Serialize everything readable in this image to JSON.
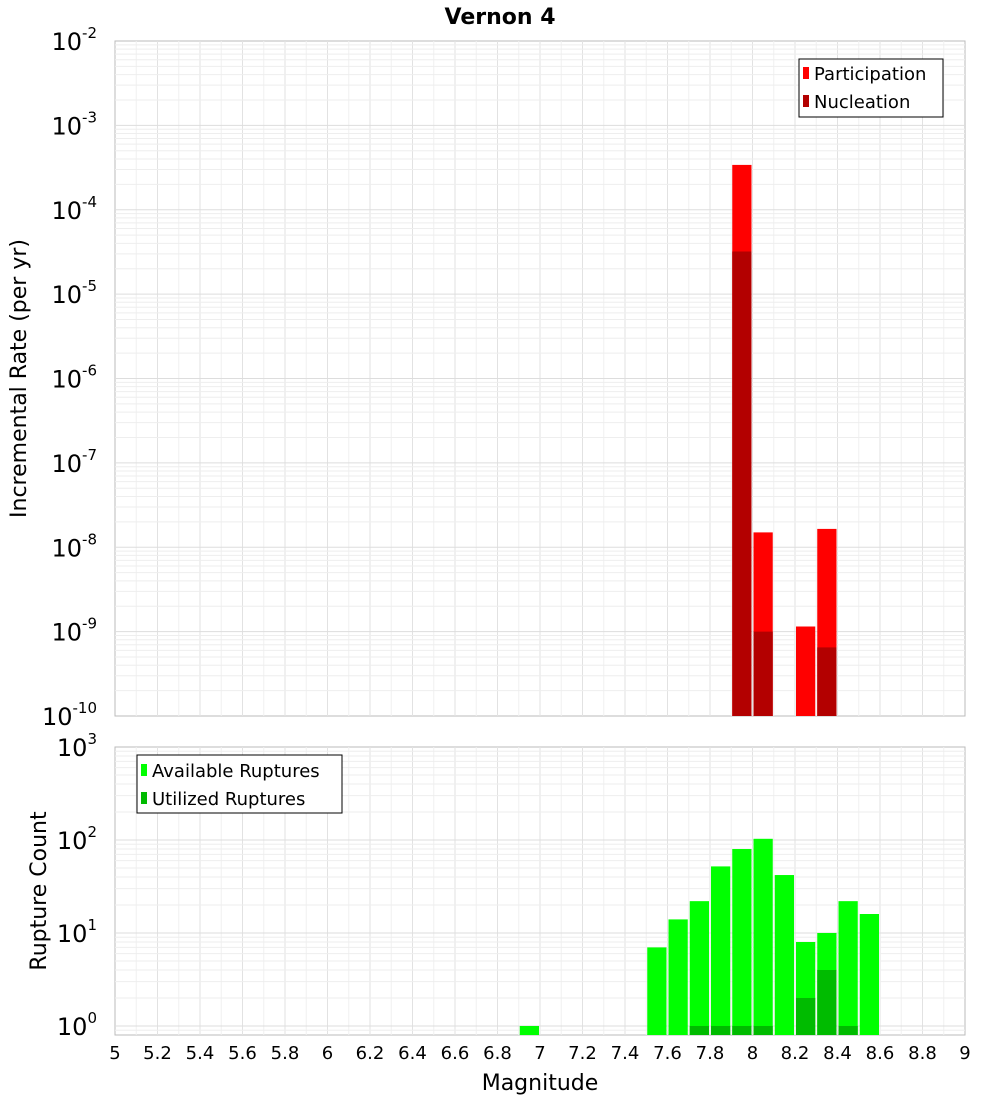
{
  "chart_data": [
    {
      "type": "bar",
      "title": "Vernon 4",
      "ylabel": "Incremental Rate (per yr)",
      "yscale": "log",
      "ylim": [
        1e-10,
        0.01
      ],
      "xlim": [
        5,
        9
      ],
      "bar_width": 0.1,
      "y_tick_exponents": [
        -2,
        -3,
        -4,
        -5,
        -6,
        -7,
        -8,
        -9,
        -10
      ],
      "y_tick_base": "10",
      "legend": {
        "position": "top-right",
        "entries": [
          "Participation",
          "Nucleation"
        ]
      },
      "series": [
        {
          "name": "Participation",
          "color": "#ff0000",
          "points": [
            [
              7.95,
              0.00034
            ],
            [
              8.05,
              1.5e-08
            ],
            [
              8.25,
              1.15e-09
            ],
            [
              8.35,
              1.65e-08
            ]
          ]
        },
        {
          "name": "Nucleation",
          "color": "#b30000",
          "points": [
            [
              7.95,
              3.2e-05
            ],
            [
              8.05,
              1e-09
            ],
            [
              8.35,
              6.5e-10
            ]
          ]
        }
      ]
    },
    {
      "type": "bar",
      "ylabel": "Rupture Count",
      "xlabel": "Magnitude",
      "yscale": "log",
      "ylim": [
        0.8,
        1000
      ],
      "xlim": [
        5,
        9
      ],
      "bar_width": 0.1,
      "y_tick_exponents": [
        3,
        2,
        1,
        0
      ],
      "y_tick_base": "10",
      "x_ticks": [
        "5",
        "5.2",
        "5.4",
        "5.6",
        "5.8",
        "6",
        "6.2",
        "6.4",
        "6.6",
        "6.8",
        "7",
        "7.2",
        "7.4",
        "7.6",
        "7.8",
        "8",
        "8.2",
        "8.4",
        "8.6",
        "8.8",
        "9"
      ],
      "legend": {
        "position": "top-left",
        "entries": [
          "Available Ruptures",
          "Utilized Ruptures"
        ]
      },
      "series": [
        {
          "name": "Available Ruptures",
          "color": "#00ff00",
          "points": [
            [
              6.95,
              1
            ],
            [
              7.55,
              7
            ],
            [
              7.65,
              14
            ],
            [
              7.75,
              22
            ],
            [
              7.85,
              52
            ],
            [
              7.95,
              80
            ],
            [
              8.05,
              103
            ],
            [
              8.15,
              42
            ],
            [
              8.25,
              8
            ],
            [
              8.35,
              10
            ],
            [
              8.45,
              22
            ],
            [
              8.55,
              16
            ]
          ]
        },
        {
          "name": "Utilized Ruptures",
          "color": "#00bb00",
          "points": [
            [
              7.75,
              1
            ],
            [
              7.85,
              1
            ],
            [
              7.95,
              1
            ],
            [
              8.05,
              1
            ],
            [
              8.25,
              2
            ],
            [
              8.35,
              4
            ],
            [
              8.45,
              1
            ]
          ]
        }
      ]
    }
  ]
}
